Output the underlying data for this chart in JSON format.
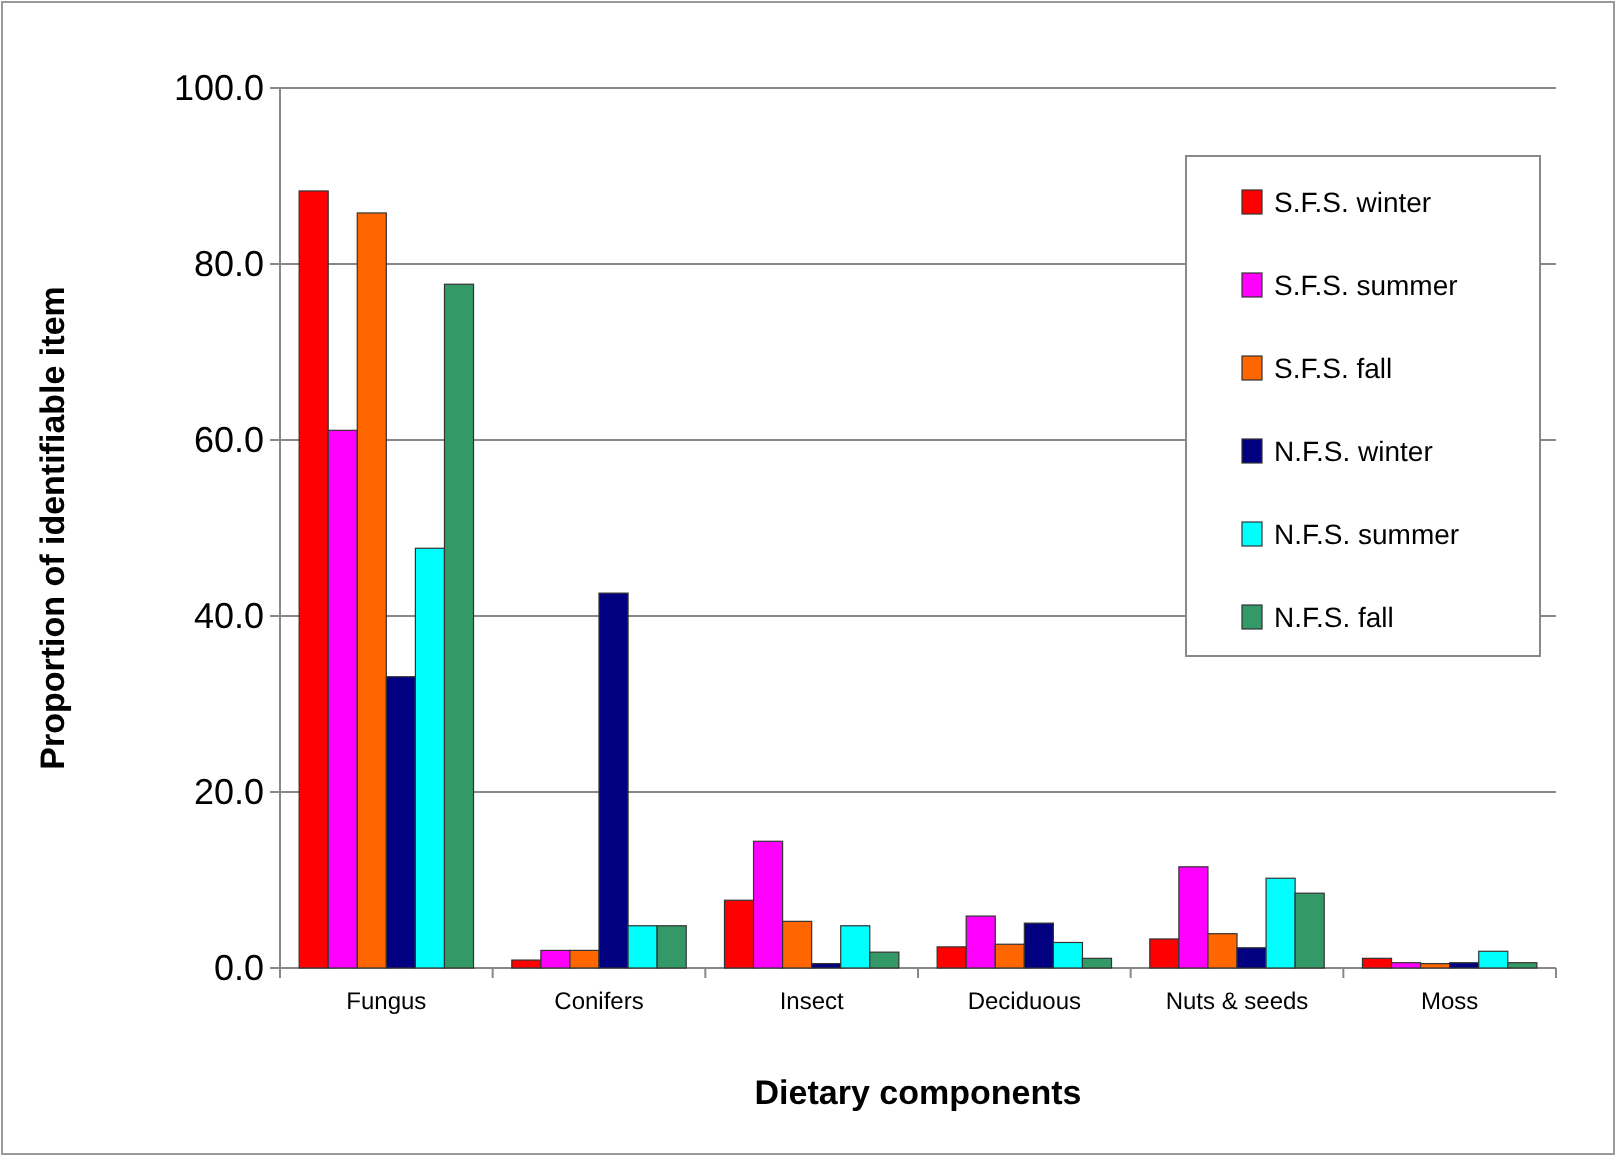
{
  "chart_data": {
    "type": "bar",
    "xlabel": "Dietary components",
    "ylabel": "Proportion of identifiable item",
    "categories": [
      "Fungus",
      "Conifers",
      "Insect",
      "Deciduous",
      "Nuts & seeds",
      "Moss"
    ],
    "series": [
      {
        "name": "S.F.S. winter",
        "color": "#ff0000",
        "values": [
          88.3,
          0.9,
          7.7,
          2.4,
          3.3,
          1.1
        ]
      },
      {
        "name": "S.F.S. summer",
        "color": "#ff00ff",
        "values": [
          61.1,
          2.0,
          14.4,
          5.9,
          11.5,
          0.6
        ]
      },
      {
        "name": "S.F.S. fall",
        "color": "#ff6600",
        "values": [
          85.8,
          2.0,
          5.3,
          2.7,
          3.9,
          0.5
        ]
      },
      {
        "name": "N.F.S. winter",
        "color": "#000080",
        "values": [
          33.1,
          42.6,
          0.5,
          5.1,
          2.3,
          0.6
        ]
      },
      {
        "name": "N.F.S. summer",
        "color": "#00ffff",
        "values": [
          47.7,
          4.8,
          4.8,
          2.9,
          10.2,
          1.9
        ]
      },
      {
        "name": "N.F.S. fall",
        "color": "#339966",
        "values": [
          77.7,
          4.8,
          1.8,
          1.1,
          8.5,
          0.6
        ]
      }
    ],
    "ylim": [
      0,
      100
    ],
    "yticks": [
      {
        "value": 0,
        "label": "0.0"
      },
      {
        "value": 20,
        "label": "20.0"
      },
      {
        "value": 40,
        "label": "40.0"
      },
      {
        "value": 60,
        "label": "60.0"
      },
      {
        "value": 80,
        "label": "80.0"
      },
      {
        "value": 100,
        "label": "100.0"
      }
    ],
    "grid": "y",
    "legend": "top right"
  }
}
